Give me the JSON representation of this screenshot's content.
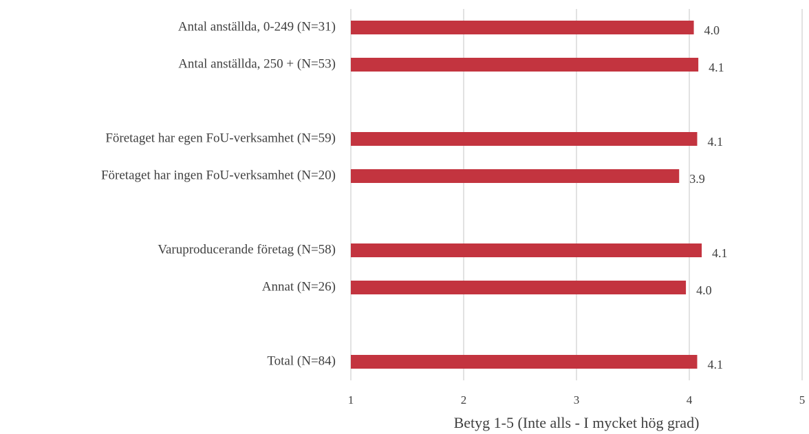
{
  "chart_data": {
    "type": "barh",
    "x_label": "Betyg 1-5 (Inte alls - I mycket hög grad)",
    "categories": [
      "Antal anställda, 0-249 (N=31)",
      "Antal anställda, 250 + (N=53)",
      null,
      "Företaget har egen FoU-verksamhet (N=59)",
      "Företaget har ingen FoU-verksamhet (N=20)",
      null,
      "Varuproducerande företag (N=58)",
      "Annat (N=26)",
      null,
      "Total (N=84)"
    ],
    "values": [
      4.04,
      4.08,
      null,
      4.07,
      3.91,
      null,
      4.11,
      3.97,
      null,
      4.07
    ],
    "value_labels": [
      "4.0",
      "4.1",
      null,
      "4.1",
      "3.9",
      null,
      "4.1",
      "4.0",
      null,
      "4.1"
    ],
    "color": "#c3343f",
    "xlim": [
      1,
      5
    ],
    "xticks": [
      1,
      2,
      3,
      4,
      5
    ],
    "grid": true
  }
}
